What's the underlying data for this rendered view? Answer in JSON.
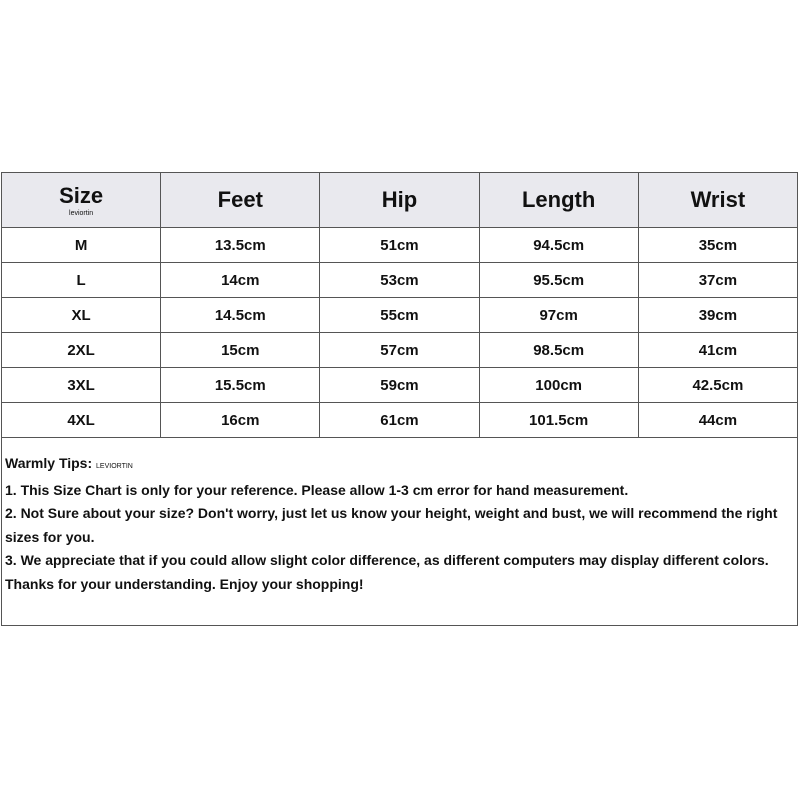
{
  "table": {
    "header": {
      "size": "Size",
      "size_note": "leviortin",
      "columns": [
        "Feet",
        "Hip",
        "Length",
        "Wrist"
      ]
    },
    "rows": [
      [
        "M",
        "13.5cm",
        "51cm",
        "94.5cm",
        "35cm"
      ],
      [
        "L",
        "14cm",
        "53cm",
        "95.5cm",
        "37cm"
      ],
      [
        "XL",
        "14.5cm",
        "55cm",
        "97cm",
        "39cm"
      ],
      [
        "2XL",
        "15cm",
        "57cm",
        "98.5cm",
        "41cm"
      ],
      [
        "3XL",
        "15.5cm",
        "59cm",
        "100cm",
        "42.5cm"
      ],
      [
        "4XL",
        "16cm",
        "61cm",
        "101.5cm",
        "44cm"
      ]
    ]
  },
  "tips": {
    "label": "Warmly Tips:",
    "brand": "LEVIORTIN",
    "lines": [
      "1. This Size Chart is only for your reference. Please allow 1-3 cm error for hand measurement.",
      "2. Not Sure about your size? Don't worry, just let us know your height, weight and bust, we will recommend the right sizes for you.",
      "3. We appreciate that if you could allow slight color difference, as different computers may display different colors.",
      "Thanks for your understanding. Enjoy your shopping!"
    ]
  }
}
